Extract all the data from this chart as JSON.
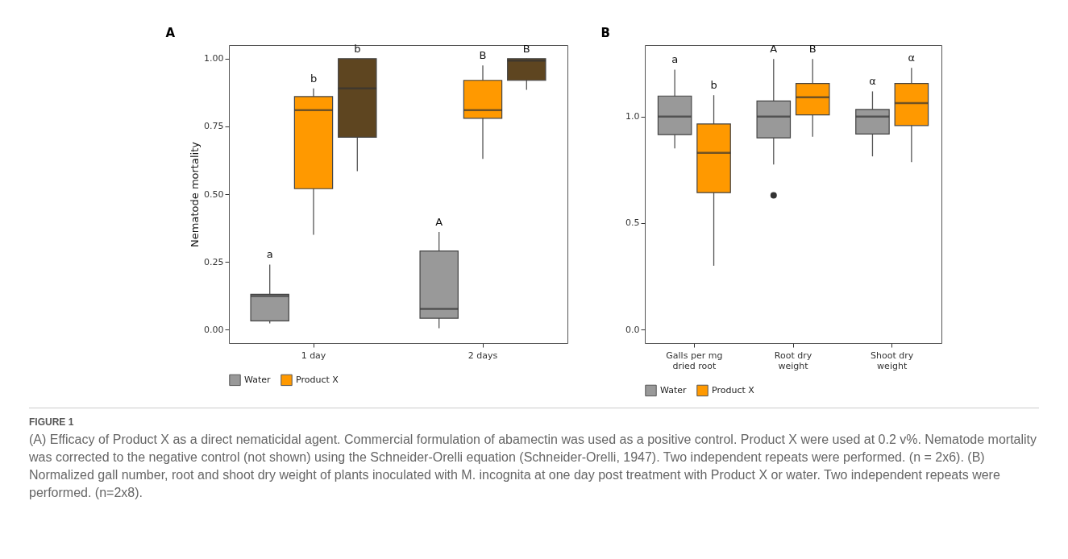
{
  "chart_data": [
    {
      "type": "box",
      "title": "A",
      "ylabel": "Nematode mortality",
      "categories": [
        "1 day",
        "2 days"
      ],
      "ylim": [
        -0.05,
        1.05
      ],
      "yticks": [
        {
          "value": 0,
          "label": "0.00"
        },
        {
          "value": 0.25,
          "label": "0.25"
        },
        {
          "value": 0.5,
          "label": "0.50"
        },
        {
          "value": 0.75,
          "label": "0.75"
        },
        {
          "value": 1,
          "label": "1.00"
        }
      ],
      "grid": false,
      "legend": "bottom",
      "series": [
        {
          "name": "Water",
          "color": "#999999",
          "boxes": [
            {
              "low": 0.023,
              "q1": 0.032,
              "median": 0.124,
              "q3": 0.13,
              "high": 0.24
            },
            {
              "low": 0.005,
              "q1": 0.042,
              "median": 0.076,
              "q3": 0.29,
              "high": 0.36
            }
          ]
        },
        {
          "name": "Product X",
          "color": "#ff9900",
          "boxes": [
            {
              "low": 0.35,
              "q1": 0.52,
              "median": 0.81,
              "q3": 0.86,
              "high": 0.89
            },
            {
              "low": 0.63,
              "q1": 0.78,
              "median": 0.81,
              "q3": 0.92,
              "high": 0.975
            }
          ]
        },
        {
          "color": "#5e4520",
          "boxes": [
            {
              "low": 0.585,
              "q1": 0.71,
              "median": 0.89,
              "q3": 1.0,
              "high": 1.0
            },
            {
              "low": 0.885,
              "q1": 0.92,
              "median": 0.993,
              "q3": 1.0,
              "high": 1.0
            }
          ]
        }
      ],
      "annotations": [
        "a",
        "b",
        "b",
        "A",
        "B",
        "B"
      ]
    },
    {
      "type": "box",
      "title": "B",
      "categories": [
        "Galls per mg dried root",
        "Root dry weight",
        "Shoot dry weight"
      ],
      "ylim": [
        -0.063,
        1.335
      ],
      "yticks": [
        {
          "value": 0,
          "label": "0.0"
        },
        {
          "value": 0.5,
          "label": "0.5"
        },
        {
          "value": 1,
          "label": "1.0"
        }
      ],
      "grid": false,
      "legend": "bottom",
      "series": [
        {
          "name": "Water",
          "color": "#999999",
          "boxes": [
            {
              "low": 0.85,
              "q1": 0.915,
              "median": 1.0,
              "q3": 1.096,
              "high": 1.22
            },
            {
              "low": 0.775,
              "q1": 0.9,
              "median": 1.0,
              "q3": 1.073,
              "high": 1.27,
              "outliers": [
                0.63
              ]
            },
            {
              "low": 0.813,
              "q1": 0.918,
              "median": 1.0,
              "q3": 1.033,
              "high": 1.118
            }
          ]
        },
        {
          "name": "Product X",
          "color": "#ff9900",
          "boxes": [
            {
              "low": 0.3,
              "q1": 0.643,
              "median": 0.83,
              "q3": 0.965,
              "high": 1.1
            },
            {
              "low": 0.905,
              "q1": 1.008,
              "median": 1.09,
              "q3": 1.155,
              "high": 1.27
            },
            {
              "low": 0.786,
              "q1": 0.958,
              "median": 1.063,
              "q3": 1.155,
              "high": 1.228
            }
          ]
        }
      ],
      "annotations": [
        "a",
        "b",
        "A",
        "B",
        "α",
        "α",
        "FIGURE 1",
        "(A) Efficacy of Product X as a direct nematicidal agent. Commercial formulation of abamectin was used as a positive control. Product X were used at 0.2 v%. Nematode mortality was corrected to the negative control (not shown) using the Schneider-Orelli equation (Schneider-Orelli, 1947). Two independent repeats were performed. (n = 2x6). (B) Normalized gall number, root and shoot dry weight of plants inoculated with M. incognita at one day post treatment with Product X or water. Two independent repeats were performed. (n=2x8)."
      ]
    }
  ]
}
